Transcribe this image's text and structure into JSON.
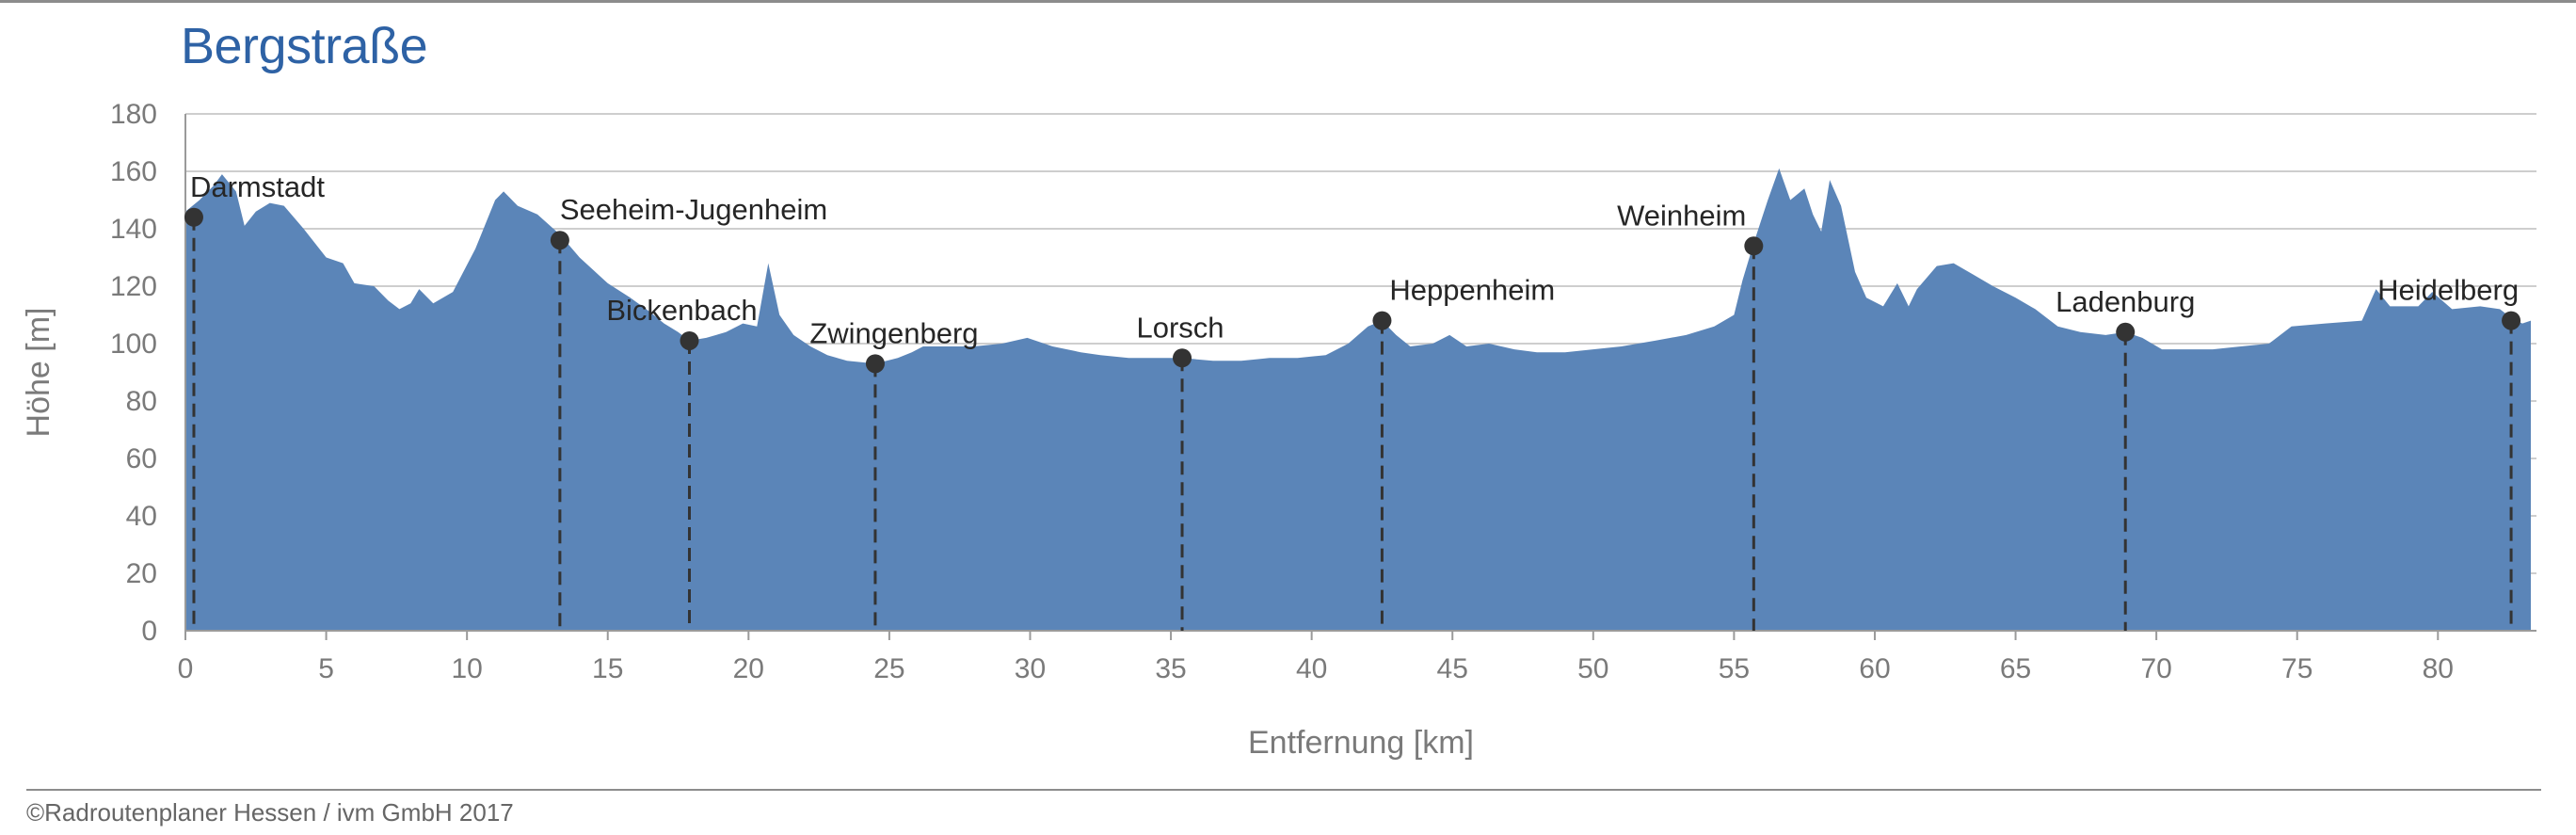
{
  "title": "Bergstraße",
  "credit": "©Radroutenplaner Hessen / ivm GmbH 2017",
  "colors": {
    "title": "#2e62a5",
    "area": "#5b85b8",
    "marker": "#333333",
    "grid": "#bdbdbd",
    "axis_text": "#7a7a7a"
  },
  "chart_data": {
    "type": "area",
    "xlabel": "Entfernung [km]",
    "ylabel": "Höhe [m]",
    "xlim": [
      0,
      83.5
    ],
    "ylim": [
      0,
      180
    ],
    "xticks": [
      0,
      5,
      10,
      15,
      20,
      25,
      30,
      35,
      40,
      45,
      50,
      55,
      60,
      65,
      70,
      75,
      80
    ],
    "yticks": [
      0,
      20,
      40,
      60,
      80,
      100,
      120,
      140,
      160,
      180
    ],
    "grid": "horizontal",
    "profile": [
      [
        0,
        146
      ],
      [
        0.5,
        150
      ],
      [
        1,
        155
      ],
      [
        1.3,
        159
      ],
      [
        1.8,
        153
      ],
      [
        2.1,
        141
      ],
      [
        2.5,
        146
      ],
      [
        3,
        149
      ],
      [
        3.5,
        148
      ],
      [
        4.2,
        140
      ],
      [
        5,
        130
      ],
      [
        5.6,
        128
      ],
      [
        6,
        121
      ],
      [
        6.7,
        120
      ],
      [
        7.2,
        115
      ],
      [
        7.6,
        112
      ],
      [
        8,
        114
      ],
      [
        8.3,
        119
      ],
      [
        8.8,
        114
      ],
      [
        9.5,
        118
      ],
      [
        10.3,
        133
      ],
      [
        11,
        150
      ],
      [
        11.3,
        153
      ],
      [
        11.8,
        148
      ],
      [
        12.5,
        145
      ],
      [
        13.3,
        138
      ],
      [
        14,
        130
      ],
      [
        15,
        121
      ],
      [
        15.8,
        116
      ],
      [
        16.5,
        111
      ],
      [
        17,
        107
      ],
      [
        17.5,
        104
      ],
      [
        17.9,
        101
      ],
      [
        18.5,
        102
      ],
      [
        19.2,
        104
      ],
      [
        19.8,
        107
      ],
      [
        20.3,
        106
      ],
      [
        20.7,
        128
      ],
      [
        21.1,
        110
      ],
      [
        21.6,
        103
      ],
      [
        22.2,
        99
      ],
      [
        22.8,
        96
      ],
      [
        23.5,
        94
      ],
      [
        24.5,
        93
      ],
      [
        25.3,
        95
      ],
      [
        25.8,
        97
      ],
      [
        26.2,
        99
      ],
      [
        27,
        99
      ],
      [
        28,
        99
      ],
      [
        29,
        100
      ],
      [
        29.9,
        102
      ],
      [
        30.8,
        99
      ],
      [
        31.8,
        97
      ],
      [
        32.5,
        96
      ],
      [
        33.5,
        95
      ],
      [
        34.5,
        95
      ],
      [
        35.4,
        95
      ],
      [
        36.5,
        94
      ],
      [
        37.5,
        94
      ],
      [
        38.5,
        95
      ],
      [
        39.5,
        95
      ],
      [
        40.5,
        96
      ],
      [
        41.3,
        100
      ],
      [
        42,
        106
      ],
      [
        42.5,
        108
      ],
      [
        43,
        103
      ],
      [
        43.5,
        99
      ],
      [
        44.3,
        100
      ],
      [
        44.9,
        103
      ],
      [
        45.5,
        99
      ],
      [
        46.3,
        100
      ],
      [
        47.2,
        98
      ],
      [
        48,
        97
      ],
      [
        49,
        97
      ],
      [
        50,
        98
      ],
      [
        51,
        99
      ],
      [
        52.2,
        101
      ],
      [
        53.3,
        103
      ],
      [
        54.3,
        106
      ],
      [
        55,
        110
      ],
      [
        55.3,
        122
      ],
      [
        55.7,
        135
      ],
      [
        56.2,
        150
      ],
      [
        56.6,
        161
      ],
      [
        57,
        150
      ],
      [
        57.5,
        154
      ],
      [
        57.8,
        145
      ],
      [
        58.1,
        139
      ],
      [
        58.4,
        157
      ],
      [
        58.8,
        148
      ],
      [
        59.3,
        125
      ],
      [
        59.7,
        116
      ],
      [
        60.3,
        113
      ],
      [
        60.8,
        121
      ],
      [
        61.2,
        113
      ],
      [
        61.5,
        119
      ],
      [
        62.2,
        127
      ],
      [
        62.8,
        128
      ],
      [
        63.5,
        124
      ],
      [
        64.2,
        120
      ],
      [
        65,
        116
      ],
      [
        65.7,
        112
      ],
      [
        66.5,
        106
      ],
      [
        67.3,
        104
      ],
      [
        68.2,
        103
      ],
      [
        68.9,
        104
      ],
      [
        69.5,
        102
      ],
      [
        70.2,
        98
      ],
      [
        71.2,
        98
      ],
      [
        72,
        98
      ],
      [
        73,
        99
      ],
      [
        74,
        100
      ],
      [
        74.8,
        106
      ],
      [
        76,
        107
      ],
      [
        77.3,
        108
      ],
      [
        77.8,
        119
      ],
      [
        78.3,
        113
      ],
      [
        79.3,
        113
      ],
      [
        79.8,
        118
      ],
      [
        80.5,
        112
      ],
      [
        81.5,
        113
      ],
      [
        82.2,
        112
      ],
      [
        82.6,
        109
      ],
      [
        83,
        107
      ],
      [
        83.3,
        108
      ]
    ],
    "towns": [
      {
        "name": "Darmstadt",
        "x": 0.3,
        "y": 144
      },
      {
        "name": "Seeheim-Jugenheim",
        "x": 13.3,
        "y": 136
      },
      {
        "name": "Bickenbach",
        "x": 17.9,
        "y": 101
      },
      {
        "name": "Zwingenberg",
        "x": 24.5,
        "y": 93
      },
      {
        "name": "Lorsch",
        "x": 35.4,
        "y": 95
      },
      {
        "name": "Heppenheim",
        "x": 42.5,
        "y": 108
      },
      {
        "name": "Weinheim",
        "x": 55.7,
        "y": 134
      },
      {
        "name": "Ladenburg",
        "x": 68.9,
        "y": 104
      },
      {
        "name": "Heidelberg",
        "x": 82.6,
        "y": 108
      }
    ]
  }
}
